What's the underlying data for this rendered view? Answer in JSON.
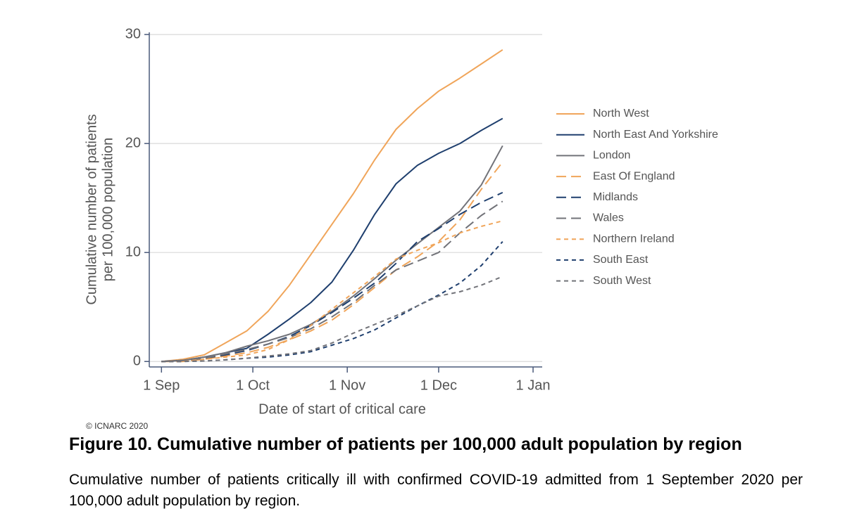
{
  "chart_data": {
    "type": "line",
    "y_label": [
      "Cumulative number of patients",
      "per 100,000 population"
    ],
    "x_label": "Date of start of critical care",
    "x": [
      0,
      7,
      14,
      21,
      28,
      35,
      42,
      49,
      56,
      63,
      70,
      77,
      84,
      91,
      98,
      105,
      112
    ],
    "xlim": [
      -4,
      125
    ],
    "xticks": [
      {
        "value": 0,
        "label": "1 Sep"
      },
      {
        "value": 30,
        "label": "1 Oct"
      },
      {
        "value": 61,
        "label": "1 Nov"
      },
      {
        "value": 91,
        "label": "1 Dec"
      },
      {
        "value": 122,
        "label": "1 Jan"
      }
    ],
    "ylim": [
      -0.5,
      30.2
    ],
    "yticks": [
      0,
      10,
      20,
      30
    ],
    "grid": true,
    "legend": "right",
    "series": [
      {
        "name": "North West",
        "color": "#f0a55a",
        "dash": "solid",
        "values": [
          0,
          0.2,
          0.6,
          1.7,
          2.8,
          4.6,
          7.0,
          9.8,
          12.6,
          15.4,
          18.5,
          21.3,
          23.2,
          24.8,
          26.0,
          27.3,
          28.6
        ]
      },
      {
        "name": "North East And Yorkshire",
        "color": "#1f3f6e",
        "dash": "solid",
        "values": [
          0,
          0.1,
          0.4,
          0.8,
          1.2,
          2.5,
          3.9,
          5.4,
          7.3,
          10.2,
          13.5,
          16.3,
          18.0,
          19.1,
          20.0,
          21.2,
          22.3
        ]
      },
      {
        "name": "London",
        "color": "#727379",
        "dash": "solid",
        "values": [
          0,
          0.1,
          0.4,
          0.8,
          1.4,
          1.9,
          2.5,
          3.4,
          4.6,
          6.0,
          7.6,
          9.3,
          10.8,
          12.3,
          13.8,
          16.2,
          19.8
        ]
      },
      {
        "name": "East Of England",
        "color": "#f0a55a",
        "dash": "long",
        "values": [
          0,
          0,
          0.2,
          0.5,
          0.8,
          1.3,
          2.0,
          2.8,
          3.8,
          5.2,
          6.8,
          8.4,
          9.6,
          11.0,
          13.0,
          15.8,
          18.3
        ]
      },
      {
        "name": "Midlands",
        "color": "#1f3f6e",
        "dash": "long",
        "values": [
          0,
          0.1,
          0.3,
          0.6,
          1.0,
          1.6,
          2.3,
          3.3,
          4.5,
          5.8,
          7.2,
          9.0,
          11.0,
          12.2,
          13.5,
          14.6,
          15.5
        ]
      },
      {
        "name": "Wales",
        "color": "#727379",
        "dash": "long",
        "values": [
          0,
          0.1,
          0.3,
          0.7,
          1.1,
          1.6,
          2.2,
          3.0,
          4.1,
          5.4,
          7.0,
          8.4,
          9.2,
          10.0,
          11.8,
          13.4,
          14.7
        ]
      },
      {
        "name": "Northern Ireland",
        "color": "#f0a55a",
        "dash": "short",
        "values": [
          0,
          0,
          0.2,
          0.4,
          0.6,
          1.1,
          2.0,
          3.3,
          4.8,
          6.3,
          7.8,
          9.4,
          10.2,
          10.9,
          11.8,
          12.4,
          12.9
        ]
      },
      {
        "name": "South East",
        "color": "#1f3f6e",
        "dash": "short",
        "values": [
          0,
          0,
          0.05,
          0.15,
          0.3,
          0.4,
          0.6,
          0.9,
          1.5,
          2.1,
          2.9,
          4.0,
          5.1,
          6.1,
          7.2,
          8.8,
          11.0
        ]
      },
      {
        "name": "South West",
        "color": "#727379",
        "dash": "short",
        "values": [
          0,
          0,
          0.05,
          0.15,
          0.3,
          0.5,
          0.7,
          1.0,
          1.7,
          2.6,
          3.4,
          4.2,
          5.1,
          6.0,
          6.4,
          7.0,
          7.8
        ]
      }
    ]
  },
  "copyright": "© ICNARC 2020",
  "figure": {
    "title": "Figure 10. Cumulative number of patients per 100,000 adult population by region",
    "caption": "Cumulative number of patients critically ill with confirmed COVID-19 admitted from 1 September 2020 per 100,000 adult population by region."
  }
}
